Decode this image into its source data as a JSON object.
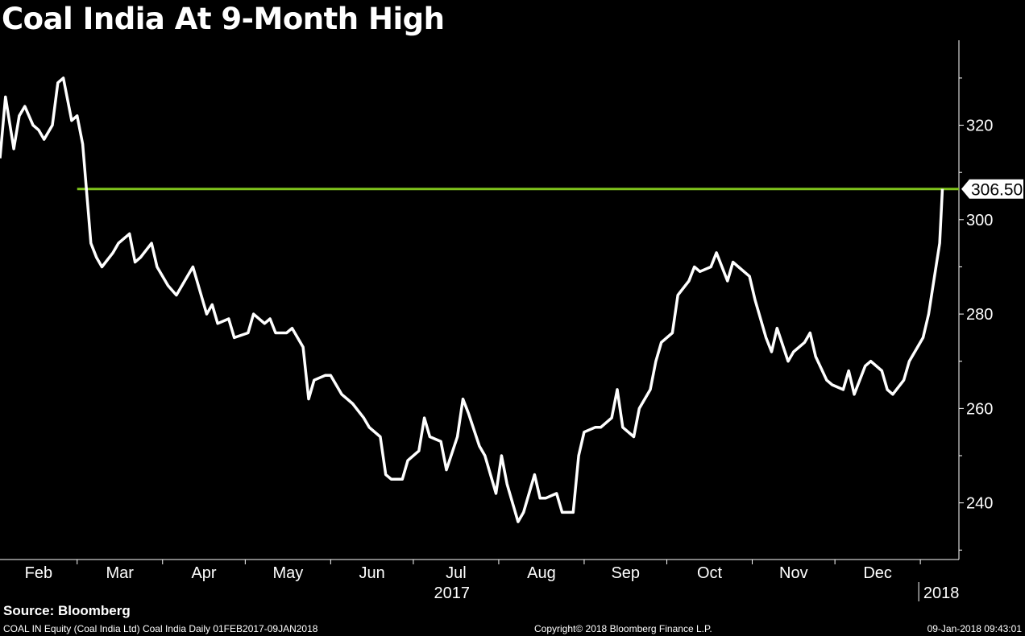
{
  "title": "Coal India At 9-Month High",
  "source": "Source: Bloomberg",
  "footer": {
    "left": "COAL IN Equity (Coal India Ltd) Coal India  Daily 01FEB2017-09JAN2018",
    "center": "Copyright© 2018 Bloomberg Finance L.P.",
    "right": "09-Jan-2018 09:43:01"
  },
  "colors": {
    "background": "#000000",
    "line": "#ffffff",
    "level_line": "#7fc31c",
    "text": "#ffffff"
  },
  "chart_data": {
    "type": "line",
    "title": "Coal India At 9-Month High",
    "x_unit": "date",
    "x": [
      "2017-02-01",
      "2017-02-03",
      "2017-02-06",
      "2017-02-08",
      "2017-02-10",
      "2017-02-13",
      "2017-02-15",
      "2017-02-17",
      "2017-02-20",
      "2017-02-22",
      "2017-02-24",
      "2017-02-27",
      "2017-03-01",
      "2017-03-03",
      "2017-03-06",
      "2017-03-08",
      "2017-03-10",
      "2017-03-14",
      "2017-03-16",
      "2017-03-20",
      "2017-03-22",
      "2017-03-24",
      "2017-03-28",
      "2017-03-30",
      "2017-04-03",
      "2017-04-06",
      "2017-04-10",
      "2017-04-12",
      "2017-04-17",
      "2017-04-19",
      "2017-04-21",
      "2017-04-25",
      "2017-04-27",
      "2017-05-02",
      "2017-05-04",
      "2017-05-08",
      "2017-05-10",
      "2017-05-12",
      "2017-05-16",
      "2017-05-18",
      "2017-05-22",
      "2017-05-24",
      "2017-05-26",
      "2017-05-30",
      "2017-06-01",
      "2017-06-05",
      "2017-06-07",
      "2017-06-09",
      "2017-06-13",
      "2017-06-15",
      "2017-06-19",
      "2017-06-21",
      "2017-06-23",
      "2017-06-27",
      "2017-06-29",
      "2017-07-03",
      "2017-07-05",
      "2017-07-07",
      "2017-07-11",
      "2017-07-13",
      "2017-07-17",
      "2017-07-19",
      "2017-07-21",
      "2017-07-25",
      "2017-07-27",
      "2017-07-31",
      "2017-08-02",
      "2017-08-04",
      "2017-08-08",
      "2017-08-10",
      "2017-08-14",
      "2017-08-16",
      "2017-08-18",
      "2017-08-22",
      "2017-08-24",
      "2017-08-28",
      "2017-08-30",
      "2017-09-01",
      "2017-09-05",
      "2017-09-07",
      "2017-09-11",
      "2017-09-13",
      "2017-09-15",
      "2017-09-19",
      "2017-09-21",
      "2017-09-25",
      "2017-09-27",
      "2017-09-29",
      "2017-10-03",
      "2017-10-05",
      "2017-10-09",
      "2017-10-11",
      "2017-10-13",
      "2017-10-17",
      "2017-10-19",
      "2017-10-23",
      "2017-10-25",
      "2017-10-27",
      "2017-10-31",
      "2017-11-02",
      "2017-11-06",
      "2017-11-08",
      "2017-11-10",
      "2017-11-14",
      "2017-11-16",
      "2017-11-20",
      "2017-11-22",
      "2017-11-24",
      "2017-11-28",
      "2017-11-30",
      "2017-12-04",
      "2017-12-06",
      "2017-12-08",
      "2017-12-12",
      "2017-12-14",
      "2017-12-18",
      "2017-12-20",
      "2017-12-22",
      "2017-12-26",
      "2017-12-28",
      "2018-01-02",
      "2018-01-04",
      "2018-01-08",
      "2018-01-09"
    ],
    "y": [
      313,
      326,
      315,
      322,
      324,
      320,
      319,
      317,
      320,
      329,
      330,
      321,
      322,
      316,
      295,
      292,
      290,
      293,
      295,
      297,
      291,
      292,
      295,
      290,
      286,
      284,
      288,
      290,
      280,
      282,
      278,
      279,
      275,
      276,
      280,
      278,
      279,
      276,
      276,
      277,
      273,
      262,
      266,
      267,
      267,
      263,
      262,
      261,
      258,
      256,
      254,
      246,
      245,
      245,
      249,
      251,
      258,
      254,
      253,
      247,
      254,
      262,
      259,
      252,
      250,
      242,
      250,
      244,
      236,
      238,
      246,
      241,
      241,
      242,
      238,
      238,
      250,
      255,
      256,
      256,
      258,
      264,
      256,
      254,
      260,
      264,
      270,
      274,
      276,
      284,
      287,
      290,
      289,
      290,
      293,
      287,
      291,
      290,
      288,
      283,
      275,
      272,
      277,
      270,
      272,
      274,
      276,
      271,
      266,
      265,
      264,
      268,
      263,
      269,
      270,
      268,
      264,
      263,
      266,
      270,
      275,
      280,
      295,
      306.5
    ],
    "reference_line": {
      "value": 306.5,
      "label": "306.50"
    },
    "x_tick_labels": [
      "Feb",
      "Mar",
      "Apr",
      "May",
      "Jun",
      "Jul",
      "Aug",
      "Sep",
      "Oct",
      "Nov",
      "Dec",
      "2018"
    ],
    "year_label": "2017",
    "y_ticks": [
      240,
      260,
      280,
      300,
      320
    ],
    "ylim": [
      228,
      338
    ],
    "xlim": [
      "2017-02-01",
      "2018-01-15"
    ],
    "grid": false,
    "y_axis_side": "right"
  }
}
